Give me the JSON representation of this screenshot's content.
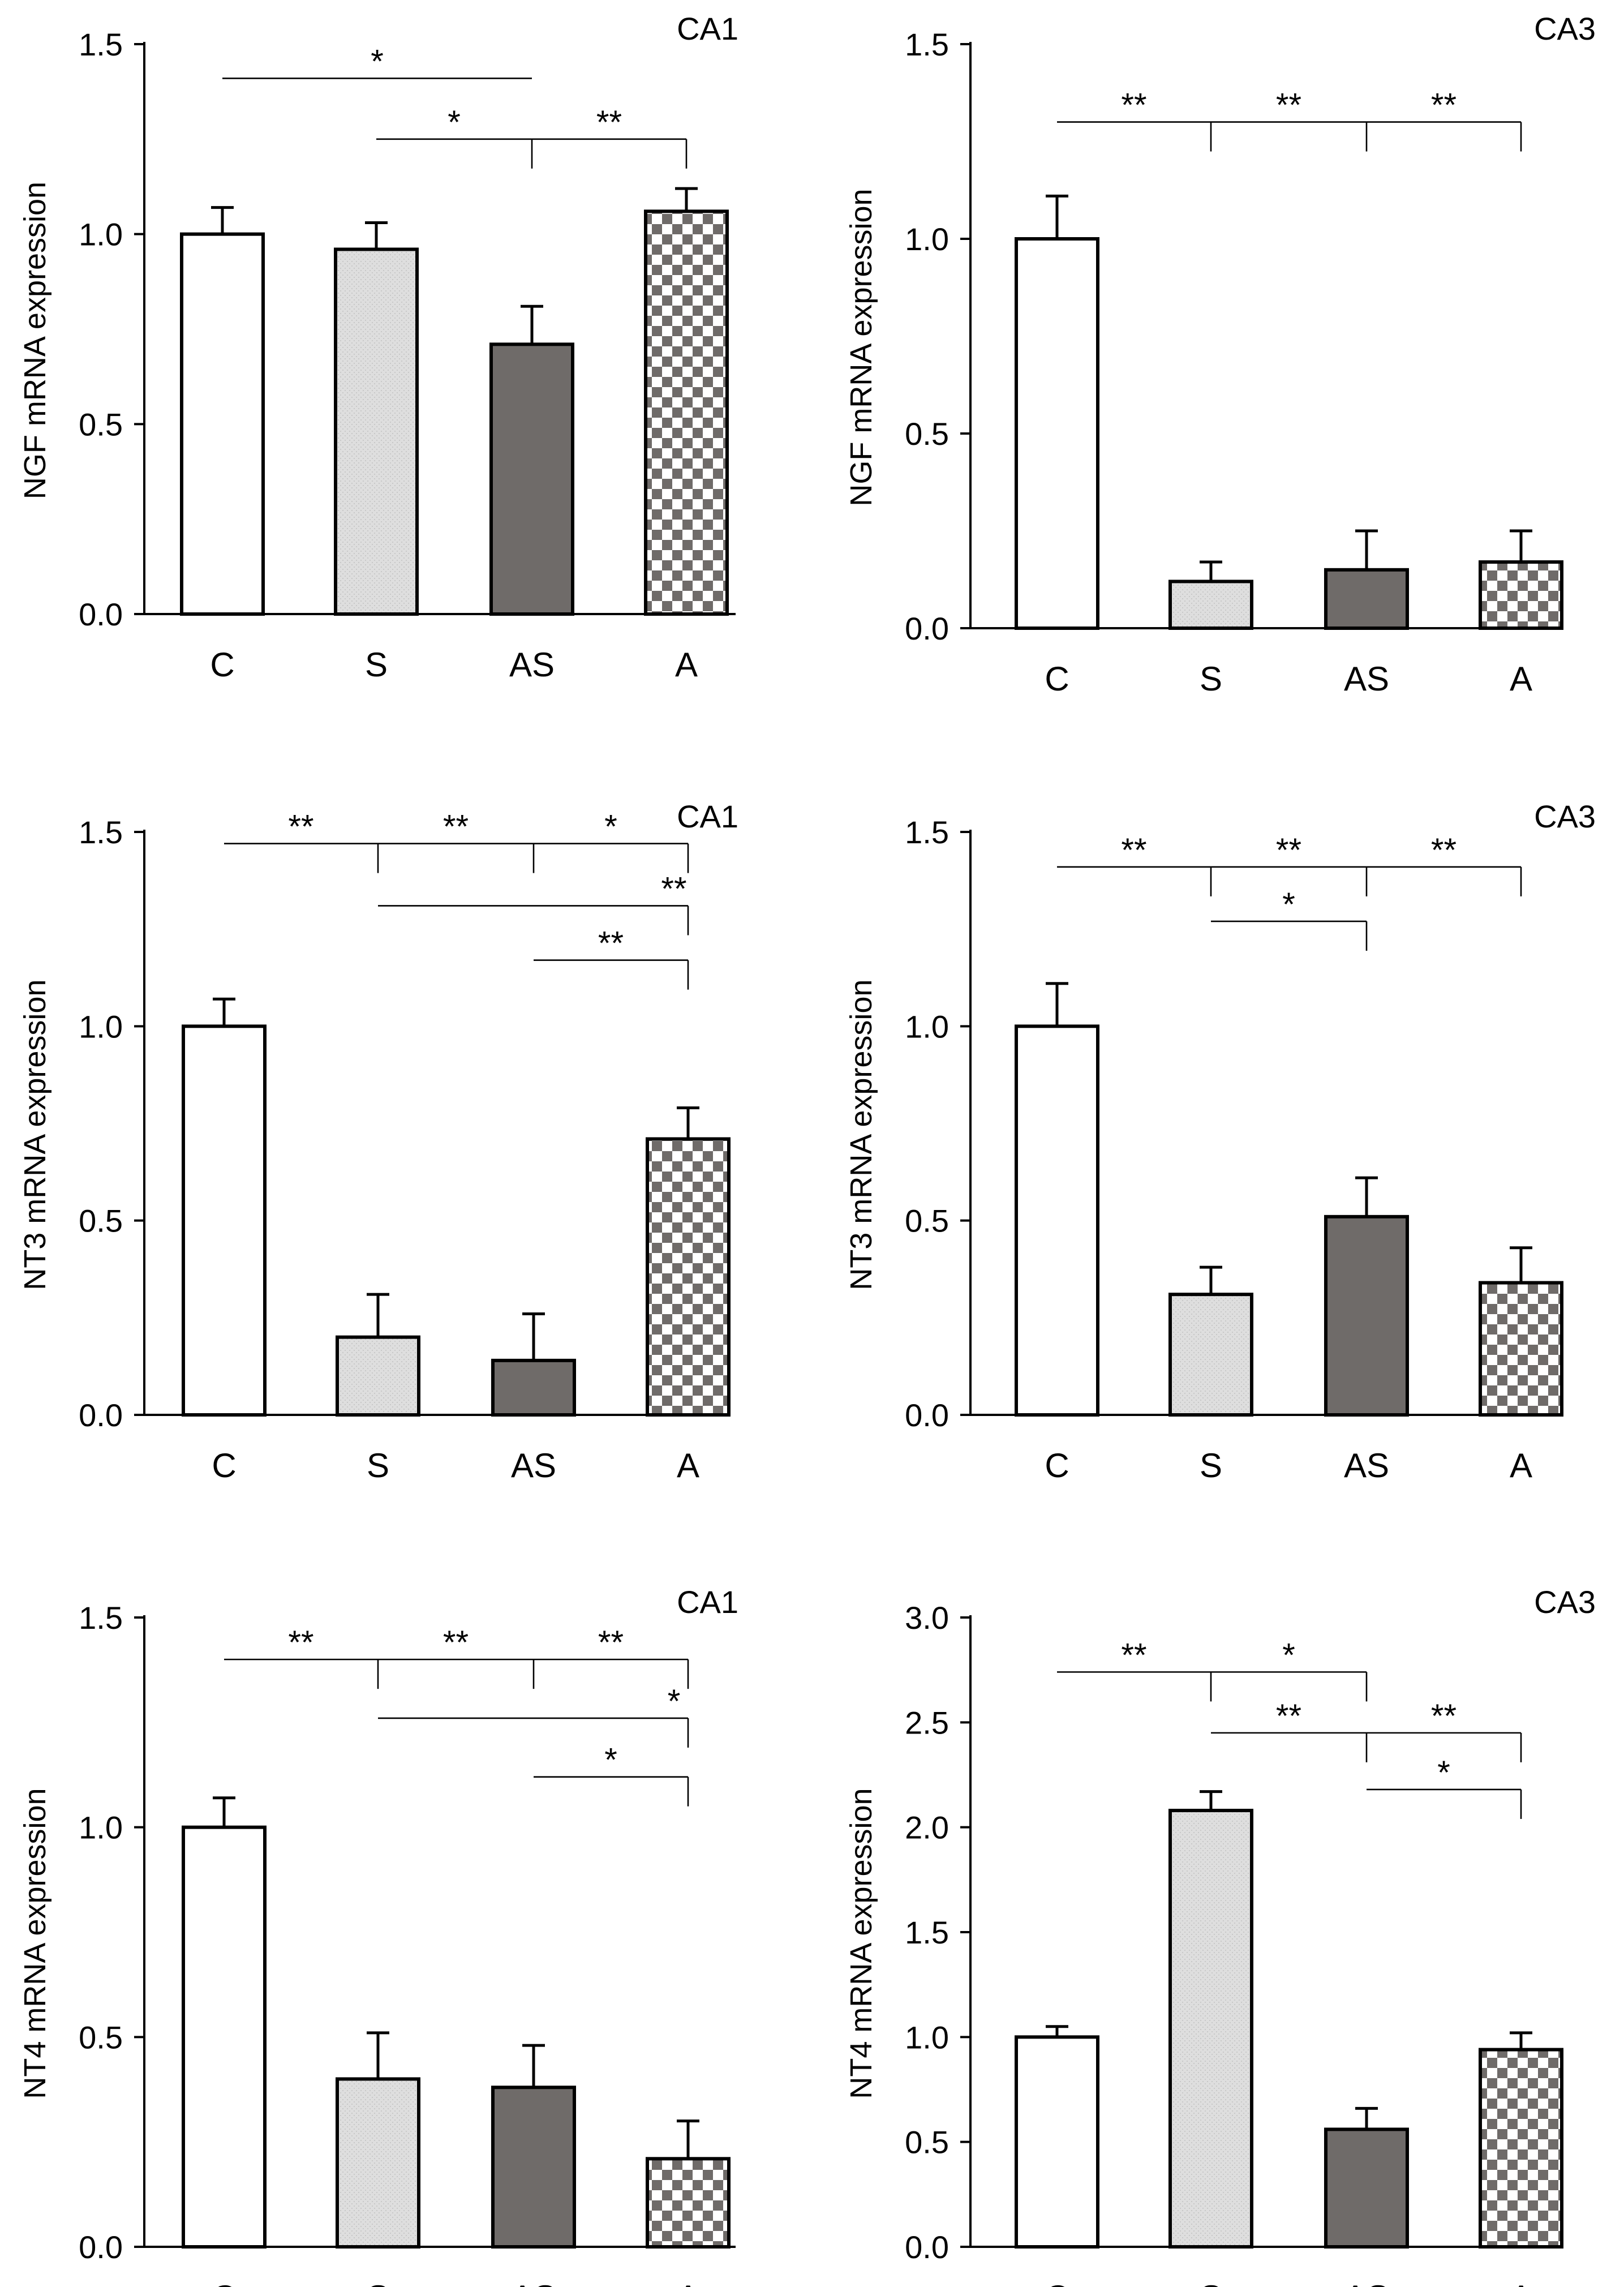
{
  "chart_data": [
    {
      "type": "bar",
      "title": "CA1",
      "ylabel": "NGF  mRNA  expression",
      "categories": [
        "C",
        "S",
        "AS",
        "A"
      ],
      "values": [
        1.0,
        0.96,
        0.71,
        1.06
      ],
      "errors": [
        0.07,
        0.07,
        0.1,
        0.06
      ],
      "ylim": [
        0,
        1.5
      ],
      "yticks": [
        "0.0",
        "0.5",
        "1.0",
        "1.5"
      ],
      "ytick_values": [
        0,
        0.5,
        1.0,
        1.5
      ],
      "annotations": [
        {
          "from": 0,
          "to": 2,
          "y": 1.41,
          "segments": [
            {
              "label": "*",
              "end": 2
            }
          ]
        },
        {
          "from": 1,
          "to": 3,
          "y": 1.25,
          "drop_at": [
            2,
            3
          ],
          "segments": [
            {
              "label": "*",
              "end": 2
            },
            {
              "label": "**",
              "end": 3
            }
          ]
        }
      ]
    },
    {
      "type": "bar",
      "title": "CA3",
      "ylabel": "NGF  mRNA  expression",
      "categories": [
        "C",
        "S",
        "AS",
        "A"
      ],
      "values": [
        1.0,
        0.12,
        0.15,
        0.17
      ],
      "errors": [
        0.11,
        0.05,
        0.1,
        0.08
      ],
      "ylim": [
        0,
        1.5
      ],
      "yticks": [
        "0.0",
        "0.5",
        "1.0",
        "1.5"
      ],
      "ytick_values": [
        0,
        0.5,
        1.0,
        1.5
      ],
      "annotations": [
        {
          "from": 0,
          "to": 3,
          "y": 1.3,
          "drop_at": [
            1,
            2,
            3
          ],
          "segments": [
            {
              "label": "**",
              "end": 1
            },
            {
              "label": "**",
              "end": 2
            },
            {
              "label": "**",
              "end": 3
            }
          ]
        }
      ]
    },
    {
      "type": "bar",
      "title": "CA1",
      "ylabel": "NT3  mRNA  expression",
      "categories": [
        "C",
        "S",
        "AS",
        "A"
      ],
      "values": [
        1.0,
        0.2,
        0.14,
        0.71
      ],
      "errors": [
        0.07,
        0.11,
        0.12,
        0.08
      ],
      "ylim": [
        0,
        1.5
      ],
      "yticks": [
        "0.0",
        "0.5",
        "1.0",
        "1.5"
      ],
      "ytick_values": [
        0,
        0.5,
        1.0,
        1.5
      ],
      "annotations": [
        {
          "from": 0,
          "to": 3,
          "y": 1.47,
          "drop_at": [
            1,
            2,
            3
          ],
          "segments": [
            {
              "label": "**",
              "end": 1
            },
            {
              "label": "**",
              "end": 2
            },
            {
              "label": "*",
              "end": 3
            }
          ]
        },
        {
          "from": 1,
          "to": 3,
          "y": 1.31,
          "drop_at": [
            3
          ],
          "segments": [
            {
              "label": "**",
              "end": 3
            }
          ]
        },
        {
          "from": 2,
          "to": 3,
          "y": 1.17,
          "drop_at": [
            3
          ],
          "segments": [
            {
              "label": "**",
              "end": 3
            }
          ]
        }
      ]
    },
    {
      "type": "bar",
      "title": "CA3",
      "ylabel": "NT3  mRNA  expression",
      "categories": [
        "C",
        "S",
        "AS",
        "A"
      ],
      "values": [
        1.0,
        0.31,
        0.51,
        0.34
      ],
      "errors": [
        0.11,
        0.07,
        0.1,
        0.09
      ],
      "ylim": [
        0,
        1.5
      ],
      "yticks": [
        "0.0",
        "0.5",
        "1.0",
        "1.5"
      ],
      "ytick_values": [
        0,
        0.5,
        1.0,
        1.5
      ],
      "annotations": [
        {
          "from": 0,
          "to": 3,
          "y": 1.41,
          "drop_at": [
            1,
            2,
            3
          ],
          "segments": [
            {
              "label": "**",
              "end": 1
            },
            {
              "label": "**",
              "end": 2
            },
            {
              "label": "**",
              "end": 3
            }
          ]
        },
        {
          "from": 1,
          "to": 2,
          "y": 1.27,
          "drop_at": [
            2
          ],
          "segments": [
            {
              "label": "*",
              "end": 2
            }
          ]
        }
      ]
    },
    {
      "type": "bar",
      "title": "CA1",
      "ylabel": "NT4  mRNA  expression",
      "categories": [
        "C",
        "S",
        "AS",
        "A"
      ],
      "values": [
        1.0,
        0.4,
        0.38,
        0.21
      ],
      "errors": [
        0.07,
        0.11,
        0.1,
        0.09
      ],
      "ylim": [
        0,
        1.5
      ],
      "yticks": [
        "0.0",
        "0.5",
        "1.0",
        "1.5"
      ],
      "ytick_values": [
        0,
        0.5,
        1.0,
        1.5
      ],
      "annotations": [
        {
          "from": 0,
          "to": 3,
          "y": 1.4,
          "drop_at": [
            1,
            2,
            3
          ],
          "segments": [
            {
              "label": "**",
              "end": 1
            },
            {
              "label": "**",
              "end": 2
            },
            {
              "label": "**",
              "end": 3
            }
          ]
        },
        {
          "from": 1,
          "to": 3,
          "y": 1.26,
          "drop_at": [
            3
          ],
          "segments": [
            {
              "label": "*",
              "end": 3
            }
          ]
        },
        {
          "from": 2,
          "to": 3,
          "y": 1.12,
          "drop_at": [
            3
          ],
          "segments": [
            {
              "label": "*",
              "end": 3
            }
          ]
        }
      ]
    },
    {
      "type": "bar",
      "title": "CA3",
      "ylabel": "NT4  mRNA  expression",
      "categories": [
        "C",
        "S",
        "AS",
        "A"
      ],
      "values": [
        1.0,
        2.08,
        0.56,
        0.94
      ],
      "errors": [
        0.05,
        0.09,
        0.1,
        0.08
      ],
      "ylim": [
        0,
        3.0
      ],
      "yticks": [
        "0.0",
        "0.5",
        "1.0",
        "1.5",
        "2.0",
        "2.5",
        "3.0"
      ],
      "ytick_values": [
        0,
        0.5,
        1.0,
        1.5,
        2.0,
        2.5,
        3.0
      ],
      "annotations": [
        {
          "from": 0,
          "to": 2,
          "y": 2.74,
          "drop_at": [
            1,
            2
          ],
          "segments": [
            {
              "label": "**",
              "end": 1
            },
            {
              "label": "*",
              "end": 2
            }
          ]
        },
        {
          "from": 1,
          "to": 3,
          "y": 2.45,
          "drop_at": [
            2,
            3
          ],
          "segments": [
            {
              "label": "**",
              "end": 2
            },
            {
              "label": "**",
              "end": 3
            }
          ]
        },
        {
          "from": 2,
          "to": 3,
          "y": 2.18,
          "drop_at": [
            3
          ],
          "segments": [
            {
              "label": "*",
              "end": 3
            }
          ]
        }
      ]
    }
  ],
  "bar_styles": [
    {
      "category": "C",
      "fill": "#ffffff"
    },
    {
      "category": "S",
      "fill": "#dcdcdc"
    },
    {
      "category": "AS",
      "fill": "#6f6b69"
    },
    {
      "category": "A",
      "fill": "checker"
    }
  ],
  "colors": {
    "checker_dark": "#6f6b69",
    "checker_light": "#ffffff",
    "stipple_base": "#dedede"
  }
}
